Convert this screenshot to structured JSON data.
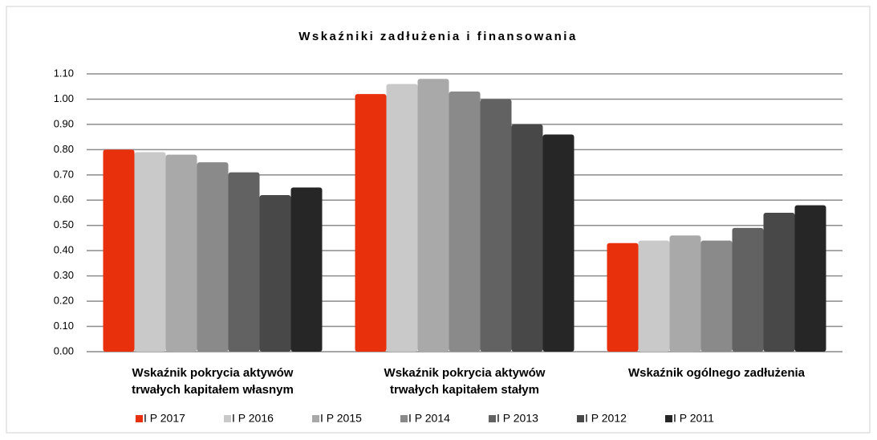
{
  "chart_data": {
    "type": "bar",
    "title": "Wskaźniki zadłużenia i finansowania",
    "categories": [
      [
        "Wskaźnik pokrycia aktywów",
        "trwałych kapitałem własnym"
      ],
      [
        "Wskaźnik pokrycia aktywów",
        "trwałych kapitałem stałym"
      ],
      [
        "Wskaźnik ogólnego zadłużenia"
      ]
    ],
    "series": [
      {
        "name": "I P 2017",
        "color": "#e8300c",
        "values": [
          0.8,
          1.02,
          0.43
        ]
      },
      {
        "name": "I P 2016",
        "color": "#c9c9c9",
        "values": [
          0.79,
          1.06,
          0.44
        ]
      },
      {
        "name": "I P 2015",
        "color": "#a9a9a9",
        "values": [
          0.78,
          1.08,
          0.46
        ]
      },
      {
        "name": "I P 2014",
        "color": "#8a8a8a",
        "values": [
          0.75,
          1.03,
          0.44
        ]
      },
      {
        "name": "I P 2013",
        "color": "#626262",
        "values": [
          0.71,
          1.0,
          0.49
        ]
      },
      {
        "name": "I P 2012",
        "color": "#484848",
        "values": [
          0.62,
          0.9,
          0.55
        ]
      },
      {
        "name": "I P 2011",
        "color": "#262626",
        "values": [
          0.65,
          0.86,
          0.58
        ]
      }
    ],
    "ylim": [
      0,
      1.1
    ],
    "yticks": [
      {
        "value": 0,
        "label": "0.00"
      },
      {
        "value": 0.1,
        "label": "0.10"
      },
      {
        "value": 0.2,
        "label": "0.20"
      },
      {
        "value": 0.3,
        "label": "0.30"
      },
      {
        "value": 0.4,
        "label": "0.40"
      },
      {
        "value": 0.5,
        "label": "0.50"
      },
      {
        "value": 0.6,
        "label": "0.60"
      },
      {
        "value": 0.7,
        "label": "0.70"
      },
      {
        "value": 0.8,
        "label": "0.80"
      },
      {
        "value": 0.9,
        "label": "0.90"
      },
      {
        "value": 1.0,
        "label": "1.00"
      },
      {
        "value": 1.1,
        "label": "1.10"
      }
    ],
    "grid": true,
    "legend": "bottom"
  }
}
